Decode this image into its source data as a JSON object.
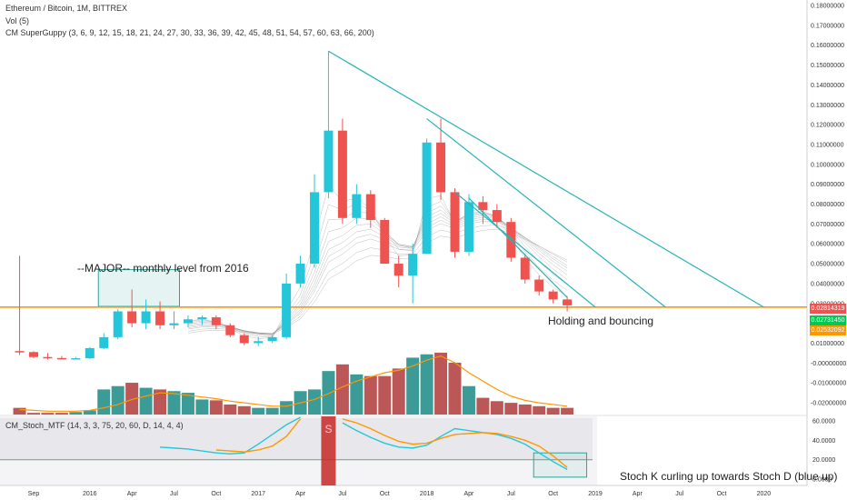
{
  "header": {
    "title": "Ethereum / Bitcoin, 1M, BITTREX",
    "vol": "Vol (5)",
    "guppy": "CM SuperGuppy (3, 6, 9, 12, 15, 18, 21, 24, 27, 30, 33, 36, 39, 42, 45, 48, 51, 54, 57, 60, 63, 66, 200)",
    "stoch": "CM_Stoch_MTF (14, 3, 3, 75, 20, 60, D, 14, 4, 4)"
  },
  "annotations": {
    "major_level": "--MAJOR-- monthly level from 2016",
    "holding": "Holding and bouncing",
    "stoch_note": "Stoch K curling up towards Stoch D (blue up)",
    "stoch_marker": "S"
  },
  "price_tags": {
    "level": "0.02814319",
    "green": "0.02731450",
    "orange": "0.02532092"
  },
  "colors": {
    "up": "#26c6da",
    "down": "#ef5350",
    "vol_up": "#1a8a84",
    "vol_down": "#b03a3a",
    "level_line": "#ff9800",
    "trendline": "#26b3b8",
    "stoch_k": "#26c6da",
    "stoch_d": "#ff9800",
    "stoch_band": "#66bb6a"
  },
  "chart_data": [
    {
      "type": "candlestick",
      "title": "Ethereum / Bitcoin, 1M, BITTREX",
      "x_ticks": [
        "Sep",
        "2016",
        "Apr",
        "Jul",
        "Oct",
        "2017",
        "Apr",
        "Jul",
        "Oct",
        "2018",
        "Apr",
        "Jul",
        "Oct",
        "2019",
        "Apr",
        "Jul",
        "Oct",
        "2020"
      ],
      "y_ticks": [
        "0.18000000",
        "0.17000000",
        "0.16000000",
        "0.15000000",
        "0.14000000",
        "0.13000000",
        "0.12000000",
        "0.11000000",
        "0.10000000",
        "0.09000000",
        "0.08000000",
        "0.07000000",
        "0.06000000",
        "0.05000000",
        "0.04000000",
        "0.03000000",
        "0.02000000",
        "0.01000000",
        "-0.00000000",
        "-0.01000000",
        "-0.02000000"
      ],
      "y_range": [
        -0.024,
        0.182
      ],
      "key_level": 0.02814319,
      "x": [
        "2015-08",
        "2015-09",
        "2015-10",
        "2015-11",
        "2015-12",
        "2016-01",
        "2016-02",
        "2016-03",
        "2016-04",
        "2016-05",
        "2016-06",
        "2016-07",
        "2016-08",
        "2016-09",
        "2016-10",
        "2016-11",
        "2016-12",
        "2017-01",
        "2017-02",
        "2017-03",
        "2017-04",
        "2017-05",
        "2017-06",
        "2017-07",
        "2017-08",
        "2017-09",
        "2017-10",
        "2017-11",
        "2017-12",
        "2018-01",
        "2018-02",
        "2018-03",
        "2018-04",
        "2018-05",
        "2018-06",
        "2018-07",
        "2018-08",
        "2018-09",
        "2018-10",
        "2018-11"
      ],
      "open": [
        0.006,
        0.0055,
        0.003,
        0.0025,
        0.0022,
        0.0024,
        0.0075,
        0.013,
        0.026,
        0.02,
        0.026,
        0.019,
        0.02,
        0.022,
        0.023,
        0.019,
        0.014,
        0.01,
        0.011,
        0.013,
        0.04,
        0.05,
        0.086,
        0.117,
        0.073,
        0.085,
        0.072,
        0.05,
        0.044,
        0.055,
        0.111,
        0.086,
        0.056,
        0.081,
        0.077,
        0.071,
        0.053,
        0.042,
        0.036,
        0.032
      ],
      "high": [
        0.054,
        0.006,
        0.005,
        0.0035,
        0.003,
        0.008,
        0.015,
        0.027,
        0.037,
        0.032,
        0.031,
        0.026,
        0.024,
        0.024,
        0.024,
        0.02,
        0.015,
        0.013,
        0.014,
        0.045,
        0.054,
        0.095,
        0.157,
        0.123,
        0.09,
        0.087,
        0.073,
        0.054,
        0.06,
        0.113,
        0.123,
        0.088,
        0.085,
        0.084,
        0.08,
        0.073,
        0.055,
        0.044,
        0.037,
        0.0335
      ],
      "high_note": "high marks approximate; 2015-08 and 2017-06 wicks read from the chart",
      "low": [
        0.004,
        0.0025,
        0.0018,
        0.0018,
        0.0018,
        0.002,
        0.007,
        0.012,
        0.018,
        0.017,
        0.017,
        0.017,
        0.018,
        0.019,
        0.017,
        0.013,
        0.009,
        0.0085,
        0.01,
        0.012,
        0.038,
        0.048,
        0.083,
        0.07,
        0.07,
        0.068,
        0.05,
        0.038,
        0.03,
        0.055,
        0.082,
        0.053,
        0.054,
        0.07,
        0.068,
        0.051,
        0.04,
        0.034,
        0.03,
        0.026
      ],
      "close": [
        0.0055,
        0.003,
        0.0025,
        0.0022,
        0.0024,
        0.0075,
        0.013,
        0.026,
        0.02,
        0.026,
        0.019,
        0.02,
        0.022,
        0.023,
        0.019,
        0.014,
        0.01,
        0.011,
        0.013,
        0.04,
        0.05,
        0.086,
        0.117,
        0.073,
        0.085,
        0.072,
        0.05,
        0.044,
        0.055,
        0.111,
        0.086,
        0.056,
        0.081,
        0.077,
        0.071,
        0.053,
        0.042,
        0.036,
        0.032,
        0.029
      ],
      "volume": [
        0.08,
        0.02,
        0.02,
        0.02,
        0.03,
        0.05,
        0.3,
        0.34,
        0.38,
        0.32,
        0.3,
        0.28,
        0.26,
        0.18,
        0.17,
        0.12,
        0.1,
        0.08,
        0.08,
        0.16,
        0.28,
        0.3,
        0.52,
        0.6,
        0.48,
        0.46,
        0.46,
        0.55,
        0.68,
        0.72,
        0.74,
        0.62,
        0.34,
        0.2,
        0.16,
        0.14,
        0.12,
        0.1,
        0.08,
        0.08
      ],
      "volume_note": "relative (0-1) bar heights; volume axis not labelled",
      "volume_ma": [
        0.06,
        0.05,
        0.04,
        0.04,
        0.04,
        0.05,
        0.08,
        0.12,
        0.18,
        0.22,
        0.26,
        0.25,
        0.23,
        0.21,
        0.19,
        0.16,
        0.14,
        0.12,
        0.1,
        0.1,
        0.14,
        0.18,
        0.25,
        0.33,
        0.4,
        0.45,
        0.5,
        0.53,
        0.58,
        0.65,
        0.7,
        0.62,
        0.5,
        0.4,
        0.3,
        0.22,
        0.17,
        0.14,
        0.12,
        0.1
      ],
      "trendlines": [
        {
          "from": {
            "x": "2017-06",
            "y": 0.157
          },
          "to": {
            "x": "2020-01",
            "y": 0.0281
          }
        },
        {
          "from": {
            "x": "2018-01",
            "y": 0.123
          },
          "to": {
            "x": "2019-06",
            "y": 0.0281
          }
        },
        {
          "from": {
            "x": "2018-03",
            "y": 0.086
          },
          "to": {
            "x": "2019-01",
            "y": 0.0281
          }
        },
        {
          "from": {
            "x": "2018-04",
            "y": 0.083
          },
          "to": {
            "x": "2018-11",
            "y": 0.033
          }
        }
      ],
      "highlight_box": {
        "x_from": "2016-02",
        "x_to": "2016-07",
        "y_from": 0.0285,
        "y_to": 0.047
      }
    },
    {
      "type": "line",
      "title": "CM_Stoch_MTF (14, 3, 3, 75, 20, 60, D, 14, 4, 4)",
      "y_ticks": [
        "60.0000",
        "40.0000",
        "20.0000",
        "0.0000"
      ],
      "y_range": [
        -2,
        62
      ],
      "upper_band": 60,
      "lower_band": 20,
      "x": [
        "2016-06",
        "2016-07",
        "2016-08",
        "2016-09",
        "2016-10",
        "2016-11",
        "2016-12",
        "2017-01",
        "2017-02",
        "2017-03",
        "2017-04",
        "2017-05",
        "2017-06",
        "2017-07",
        "2017-08",
        "2017-09",
        "2017-10",
        "2017-11",
        "2017-12",
        "2018-01",
        "2018-02",
        "2018-03",
        "2018-04",
        "2018-05",
        "2018-06",
        "2018-07",
        "2018-08",
        "2018-09",
        "2018-10",
        "2018-11"
      ],
      "series": [
        {
          "name": "Stoch K",
          "values": [
            33,
            32,
            31,
            29,
            27,
            26,
            27,
            36,
            46,
            56,
            75,
            null,
            null,
            58,
            50,
            43,
            37,
            33,
            32,
            35,
            44,
            52,
            50,
            48,
            46,
            42,
            36,
            27,
            18,
            10
          ]
        },
        {
          "name": "Stoch D",
          "values": [
            null,
            null,
            null,
            null,
            30,
            29,
            28,
            30,
            34,
            44,
            62,
            null,
            null,
            62,
            58,
            52,
            45,
            39,
            36,
            37,
            42,
            46,
            47,
            48,
            47,
            44,
            40,
            34,
            24,
            12
          ]
        }
      ],
      "signal_bar_x": "2017-06",
      "highlight_box": {
        "x_from": "2018-09",
        "x_to": "2018-12",
        "y_from": 2,
        "y_to": 27
      }
    }
  ]
}
